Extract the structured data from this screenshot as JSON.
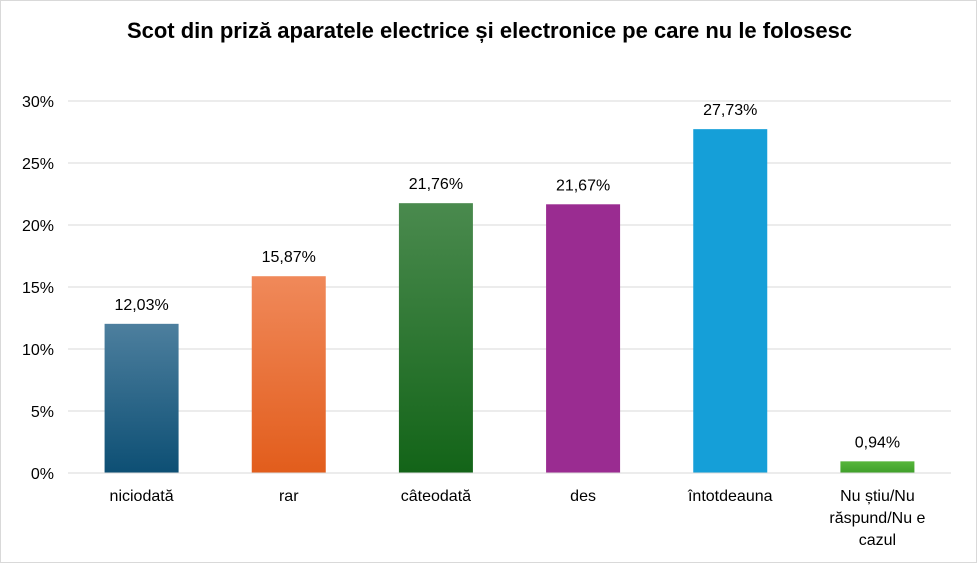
{
  "chart_data": {
    "type": "bar",
    "title": "Scot din priză aparatele electrice și electronice pe care nu le folosesc",
    "categories": [
      "niciodată",
      "rar",
      "câteodată",
      "des",
      "întotdeauna",
      "Nu știu/Nu răspund/Nu e cazul"
    ],
    "category_lines": [
      [
        "niciodată"
      ],
      [
        "rar"
      ],
      [
        "câteodată"
      ],
      [
        "des"
      ],
      [
        "întotdeauna"
      ],
      [
        "Nu știu/Nu",
        "răspund/Nu e",
        "cazul"
      ]
    ],
    "values": [
      12.03,
      15.87,
      21.76,
      21.67,
      27.73,
      0.94
    ],
    "data_labels": [
      "12,03%",
      "15,87%",
      "21,76%",
      "21,67%",
      "27,73%",
      "0,94%"
    ],
    "ylim": [
      0,
      30
    ],
    "yticks": [
      0,
      5,
      10,
      15,
      20,
      25,
      30
    ],
    "ytick_labels": [
      "0%",
      "5%",
      "10%",
      "15%",
      "20%",
      "25%",
      "30%"
    ],
    "grid": true,
    "legend": "none",
    "colors": [
      [
        "#4d7f9e",
        "#0d4f74"
      ],
      [
        "#f0895a",
        "#e25d1c"
      ],
      [
        "#4a8a4e",
        "#136418"
      ],
      [
        "#9a2c91",
        "#9a2c91"
      ],
      [
        "#159fd8",
        "#159fd8"
      ],
      [
        "#57b63b",
        "#3f9f2a"
      ]
    ]
  }
}
